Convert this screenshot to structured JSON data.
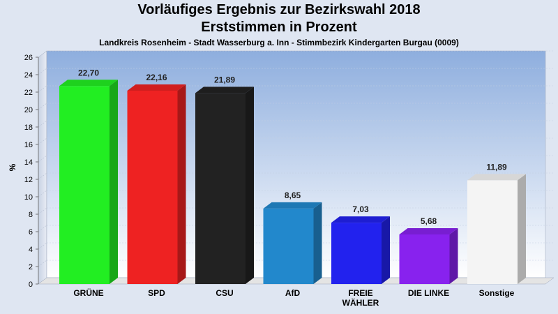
{
  "chart_data": {
    "type": "bar",
    "title": "Vorläufiges Ergebnis zur Bezirkswahl 2018",
    "subtitle": "Erststimmen in Prozent",
    "caption": "Landkreis Rosenheim - Stadt Wasserburg a. Inn - Stimmbezirk Kindergarten Burgau (0009)",
    "ylabel": "%",
    "xlabel": "",
    "ylim": [
      0,
      26
    ],
    "yticks": [
      "0",
      "2",
      "4",
      "6",
      "8",
      "10",
      "12",
      "14",
      "16",
      "18",
      "20",
      "22",
      "24",
      "26"
    ],
    "grid": true,
    "categories": [
      "GRÜNE",
      "SPD",
      "CSU",
      "AfD",
      "FREIE WÄHLER",
      "DIE LINKE",
      "Sonstige"
    ],
    "category_lines": [
      [
        "GRÜNE"
      ],
      [
        "SPD"
      ],
      [
        "CSU"
      ],
      [
        "AfD"
      ],
      [
        "FREIE",
        "WÄHLER"
      ],
      [
        "DIE LINKE"
      ],
      [
        "Sonstige"
      ]
    ],
    "values": [
      22.7,
      22.16,
      21.89,
      8.65,
      7.03,
      5.68,
      11.89
    ],
    "value_labels": [
      "22,70",
      "22,16",
      "21,89",
      "8,65",
      "7,03",
      "5,68",
      "11,89"
    ],
    "colors": [
      "#22ee22",
      "#ee2222",
      "#222222",
      "#2288cc",
      "#2222ee",
      "#8822ee",
      "#f4f4f4"
    ]
  }
}
